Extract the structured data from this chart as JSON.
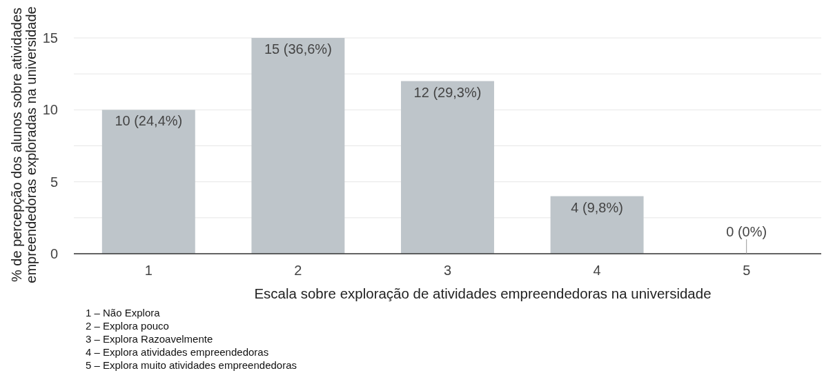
{
  "chart_data": {
    "type": "bar",
    "categories": [
      "1",
      "2",
      "3",
      "4",
      "5"
    ],
    "values": [
      10,
      15,
      12,
      4,
      0
    ],
    "value_labels": [
      "10 (24,4%)",
      "15 (36,6%)",
      "12 (29,3%)",
      "4 (9,8%)",
      "0 (0%)"
    ],
    "color": "#bec5ca",
    "xlabel": "Escala sobre exploração de atividades empreendedoras na universidade",
    "ylabel": "% de percepção dos alunos sobre atividades\nempreendedoras exploradas na universidade",
    "ylim": [
      0,
      15
    ],
    "yticks": [
      0,
      {
        "value": 2.5,
        "label": null
      },
      5,
      {
        "value": 7.5,
        "label": null
      },
      10,
      {
        "value": 12.5,
        "label": null
      },
      15
    ],
    "grid": true,
    "annotations": [
      "1 – Não Explora",
      "2 – Explora pouco",
      "3 – Explora Razoavelmente",
      "4 – Explora atividades empreendedoras",
      "5 – Explora muito atividades empreendedoras"
    ]
  }
}
